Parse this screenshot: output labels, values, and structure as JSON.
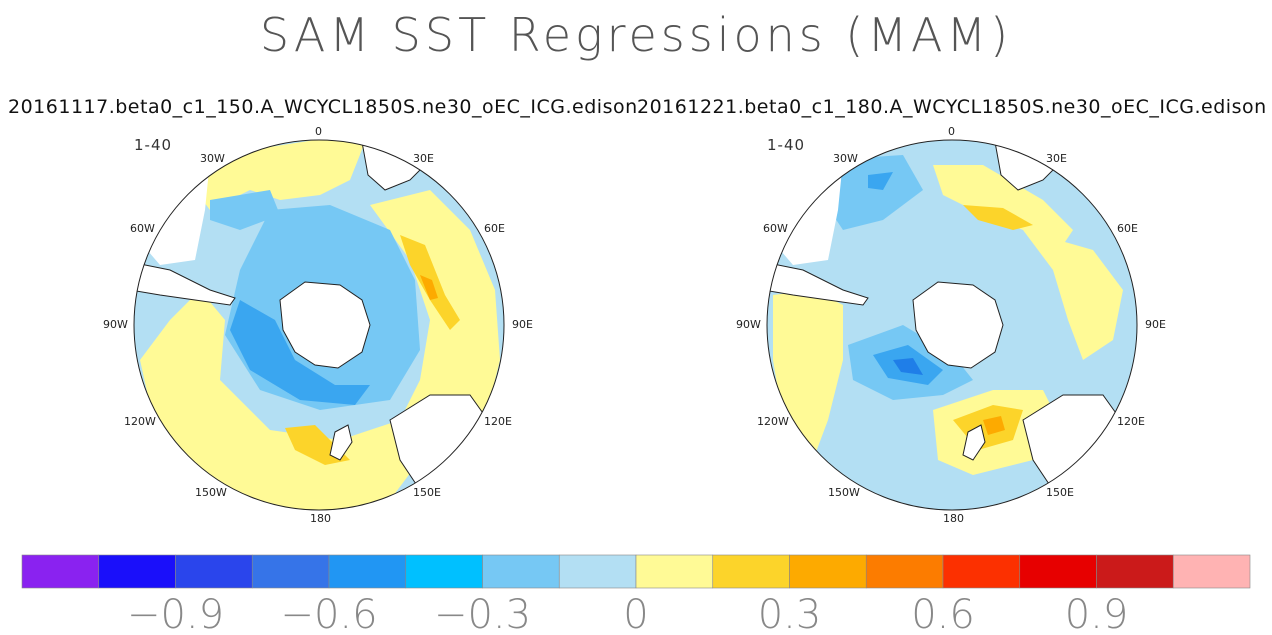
{
  "title": "SAM SST Regressions (MAM)",
  "panels": [
    {
      "subtitle": "20161117.beta0_c1_150.A_WCYCL1850S.ne30_oEC_ICG.edison",
      "range": "1-40",
      "lon_labels": [
        "0",
        "30E",
        "60E",
        "90E",
        "120E",
        "150E",
        "180",
        "150W",
        "120W",
        "90W",
        "60W",
        "30W"
      ]
    },
    {
      "subtitle": "20161221.beta0_c1_180.A_WCYCL1850S.ne30_oEC_ICG.edison",
      "range": "1-40",
      "lon_labels": [
        "0",
        "30E",
        "60E",
        "90E",
        "120E",
        "150E",
        "180",
        "150W",
        "120W",
        "90W",
        "60W",
        "30W"
      ]
    }
  ],
  "colorbar": {
    "colors": [
      "#8a22f0",
      "#1a0ffa",
      "#2a45ec",
      "#3674e8",
      "#2196f3",
      "#00c0ff",
      "#76c8f4",
      "#b3dff3",
      "#fffa96",
      "#fcd42a",
      "#fdaa00",
      "#fc7c00",
      "#fc3000",
      "#e70000",
      "#cb1a1a",
      "#ffb3b3"
    ],
    "tick_values": [
      "−0.9",
      "−0.6",
      "−0.3",
      "0",
      "0.3",
      "0.6",
      "0.9"
    ]
  }
}
